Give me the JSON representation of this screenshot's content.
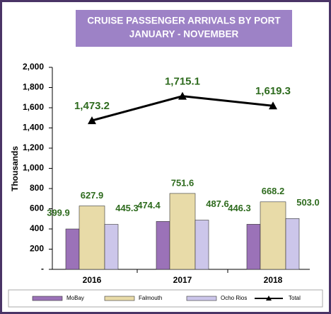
{
  "chart_data": {
    "type": "bar",
    "title": [
      "CRUISE  PASSENGER ARRIVALS BY PORT",
      "JANUARY - NOVEMBER"
    ],
    "y_label": "Thousands",
    "categories": [
      "2016",
      "2017",
      "2018"
    ],
    "series": [
      {
        "name": "MoBay",
        "color": "#9b72b8",
        "values": [
          399.9,
          474.4,
          446.3
        ],
        "value_labels": [
          "399.9",
          "474.4",
          "446.3"
        ]
      },
      {
        "name": "Falmouth",
        "color": "#e8dba8",
        "values": [
          627.9,
          751.6,
          668.2
        ],
        "value_labels": [
          "627.9",
          "751.6",
          "668.2"
        ]
      },
      {
        "name": "Ocho Rios",
        "color": "#ccc6ea",
        "values": [
          445.3,
          487.6,
          503.0
        ],
        "value_labels": [
          "445.3",
          "487.6",
          "503.0"
        ]
      },
      {
        "name": "Total",
        "type": "line",
        "color": "#000000",
        "values": [
          1473.2,
          1715.1,
          1619.3
        ],
        "value_labels": [
          "1,473.2",
          "1,715.1",
          "1,619.3"
        ]
      }
    ],
    "ylim": [
      0,
      2000
    ],
    "yticks": [
      {
        "value": 0,
        "label": "-"
      },
      200,
      400,
      600,
      800,
      {
        "value": 1000,
        "label": "1,000"
      },
      {
        "value": 1200,
        "label": "1,200"
      },
      {
        "value": 1400,
        "label": "1,400"
      },
      {
        "value": 1600,
        "label": "1,600"
      },
      {
        "value": 1800,
        "label": "1,800"
      },
      {
        "value": 2000,
        "label": "2,000"
      }
    ]
  }
}
